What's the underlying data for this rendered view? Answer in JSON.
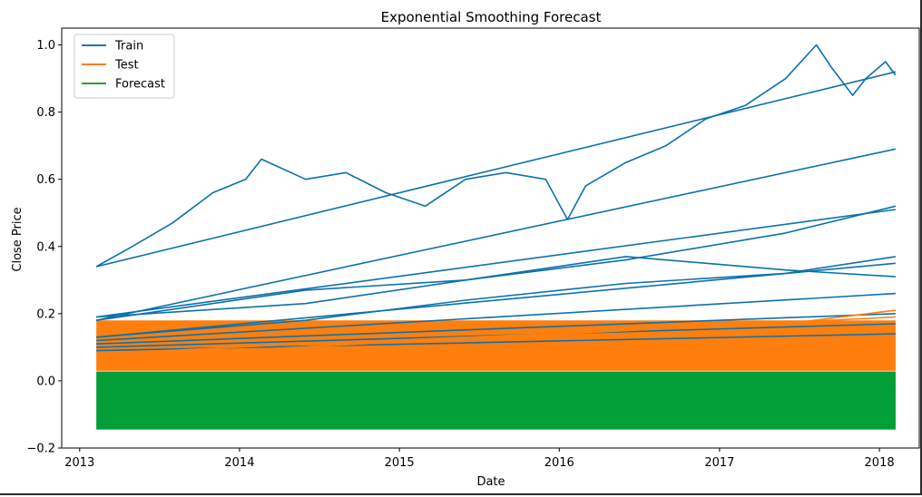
{
  "chart_data": {
    "type": "line",
    "title": "Exponential Smoothing Forecast",
    "xlabel": "Date",
    "ylabel": "Close Price",
    "xlim": [
      "2012-11-21",
      "2018-04-02"
    ],
    "ylim": [
      -0.2,
      1.05
    ],
    "x_ticks": [
      "2013",
      "2014",
      "2015",
      "2016",
      "2017",
      "2018"
    ],
    "y_ticks": [
      "−0.2",
      "0.0",
      "0.2",
      "0.4",
      "0.6",
      "0.8",
      "1.0"
    ],
    "legend": {
      "position": "top-left",
      "entries": [
        {
          "label": "Train",
          "color": "#1f77b4"
        },
        {
          "label": "Test",
          "color": "#ff7f0e"
        },
        {
          "label": "Forecast",
          "color": "#2ca02c"
        }
      ]
    },
    "series": [
      {
        "name": "Train",
        "color": "#0c71ad",
        "trace_color": "#1f77b4",
        "segments": [
          {
            "x": [
              "2013-02-08",
              "2013-05-01",
              "2013-08-01",
              "2013-11-01",
              "2014-01-15",
              "2014-02-20",
              "2014-06-01",
              "2014-09-01",
              "2014-12-01",
              "2015-03-01",
              "2015-06-01",
              "2015-09-01",
              "2015-12-01",
              "2016-01-20",
              "2016-03-01",
              "2016-06-01",
              "2016-09-01",
              "2016-12-01",
              "2017-03-01",
              "2017-06-01",
              "2017-08-10",
              "2017-09-15",
              "2017-11-01",
              "2017-12-01",
              "2018-01-15",
              "2018-02-07"
            ],
            "y": [
              0.34,
              0.4,
              0.47,
              0.56,
              0.6,
              0.66,
              0.6,
              0.62,
              0.56,
              0.52,
              0.6,
              0.62,
              0.6,
              0.48,
              0.58,
              0.65,
              0.7,
              0.78,
              0.82,
              0.9,
              1.0,
              0.93,
              0.85,
              0.9,
              0.95,
              0.91
            ]
          },
          {
            "x": [
              "2013-02-08",
              "2018-02-07"
            ],
            "y": [
              0.34,
              0.92
            ]
          },
          {
            "x": [
              "2013-02-08",
              "2014-06-01",
              "2015-06-01",
              "2016-06-01",
              "2017-06-01",
              "2018-02-07"
            ],
            "y": [
              0.19,
              0.23,
              0.3,
              0.36,
              0.44,
              0.52
            ]
          },
          {
            "x": [
              "2013-02-08",
              "2018-02-07"
            ],
            "y": [
              0.19,
              0.51
            ]
          },
          {
            "x": [
              "2013-02-08",
              "2014-06-01",
              "2015-06-01",
              "2016-06-01",
              "2017-06-01",
              "2018-02-07"
            ],
            "y": [
              0.18,
              0.27,
              0.3,
              0.37,
              0.33,
              0.31
            ]
          },
          {
            "x": [
              "2013-02-08",
              "2018-02-07"
            ],
            "y": [
              0.18,
              0.69
            ]
          },
          {
            "x": [
              "2013-02-08",
              "2014-06-01",
              "2015-06-01",
              "2016-06-01",
              "2017-06-01",
              "2018-02-07"
            ],
            "y": [
              0.13,
              0.18,
              0.24,
              0.29,
              0.32,
              0.37
            ]
          },
          {
            "x": [
              "2013-02-08",
              "2018-02-07"
            ],
            "y": [
              0.13,
              0.35
            ]
          },
          {
            "x": [
              "2013-02-08",
              "2018-02-07"
            ],
            "y": [
              0.12,
              0.26
            ]
          },
          {
            "x": [
              "2013-02-08",
              "2018-02-07"
            ],
            "y": [
              0.11,
              0.2
            ]
          },
          {
            "x": [
              "2013-02-08",
              "2018-02-07"
            ],
            "y": [
              0.1,
              0.17
            ]
          },
          {
            "x": [
              "2013-02-08",
              "2018-02-07"
            ],
            "y": [
              0.09,
              0.14
            ]
          }
        ]
      },
      {
        "name": "Test",
        "color": "#ff7f0e",
        "band": [
          0.03,
          0.18
        ],
        "segments": [
          {
            "x": [
              "2013-02-08",
              "2014-06-01",
              "2015-06-01",
              "2016-06-01",
              "2017-06-01",
              "2018-02-07"
            ],
            "y": [
              0.08,
              0.11,
              0.13,
              0.15,
              0.17,
              0.21
            ]
          },
          {
            "x": [
              "2013-02-08",
              "2018-02-07"
            ],
            "y": [
              0.07,
              0.19
            ]
          }
        ]
      },
      {
        "name": "Forecast",
        "color": "#029e37",
        "band": [
          -0.145,
          0.028
        ],
        "x": [
          "2013-02-08",
          "2018-02-07"
        ]
      }
    ]
  }
}
